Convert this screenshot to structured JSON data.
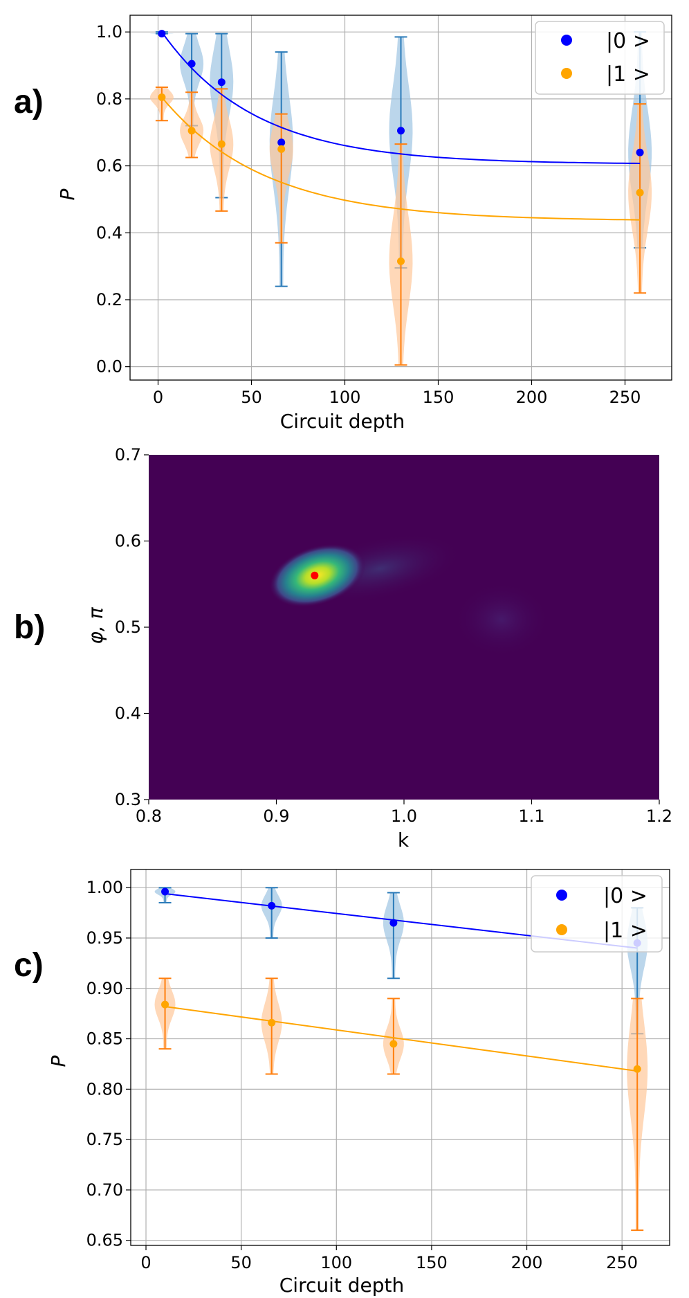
{
  "colors": {
    "state0": "#0000ff",
    "state1": "#ffa500",
    "violin0": "#9ec5e3",
    "violin0_edge": "#2b7bb9",
    "violin1": "#ffc89a",
    "violin1_edge": "#ff7f0e",
    "heat_bg": "#440154",
    "heat_peak": "#ff0000"
  },
  "chart_data": [
    {
      "panel_label": "a)",
      "type": "scatter",
      "xlabel": "Circuit depth",
      "ylabel": "P",
      "xlim": [
        -15,
        275
      ],
      "ylim": [
        -0.04,
        1.05
      ],
      "xticks": [
        0,
        50,
        100,
        150,
        200,
        250
      ],
      "xtick_labels": [
        "0",
        "50",
        "100",
        "150",
        "200",
        "250"
      ],
      "yticks": [
        0.0,
        0.2,
        0.4,
        0.6,
        0.8,
        1.0
      ],
      "ytick_labels": [
        "0.0",
        "0.2",
        "0.4",
        "0.6",
        "0.8",
        "1.0"
      ],
      "grid": true,
      "legend": "top-right",
      "series": [
        {
          "name": "|0 >",
          "x": [
            2,
            18,
            34,
            66,
            130,
            258
          ],
          "mean": [
            0.995,
            0.905,
            0.85,
            0.67,
            0.705,
            0.64
          ],
          "min": [
            0.995,
            0.72,
            0.505,
            0.24,
            0.295,
            0.355
          ],
          "max": [
            1.0,
            0.995,
            0.995,
            0.94,
            0.985,
            1.0
          ],
          "fit_x": [
            2,
            258
          ],
          "fit_curve": {
            "a": 0.605,
            "b": 0.395,
            "tau": 50
          }
        },
        {
          "name": "|1 >",
          "x": [
            2,
            18,
            34,
            66,
            130,
            258
          ],
          "mean": [
            0.805,
            0.705,
            0.665,
            0.65,
            0.315,
            0.52
          ],
          "min": [
            0.735,
            0.625,
            0.465,
            0.37,
            0.005,
            0.22
          ],
          "max": [
            0.835,
            0.82,
            0.83,
            0.755,
            0.665,
            0.785
          ],
          "fit_x": [
            2,
            258
          ],
          "fit_curve": {
            "a": 0.435,
            "b": 0.37,
            "tau": 55
          }
        }
      ]
    },
    {
      "panel_label": "b)",
      "type": "heatmap",
      "xlabel": "k",
      "ylabel": "φ, π",
      "xlim": [
        0.8,
        1.2
      ],
      "ylim": [
        0.3,
        0.7
      ],
      "xticks": [
        0.8,
        0.9,
        1.0,
        1.1,
        1.2
      ],
      "xtick_labels": [
        "0.8",
        "0.9",
        "1.0",
        "1.1",
        "1.2"
      ],
      "yticks": [
        0.3,
        0.4,
        0.5,
        0.6,
        0.7
      ],
      "ytick_labels": [
        "0.3",
        "0.4",
        "0.5",
        "0.6",
        "0.7"
      ],
      "grid": false,
      "peak": {
        "k": 0.93,
        "phi": 0.56
      }
    },
    {
      "panel_label": "c)",
      "type": "scatter",
      "xlabel": "Circuit depth",
      "ylabel": "P",
      "xlim": [
        -8,
        275
      ],
      "ylim": [
        0.645,
        1.018
      ],
      "xticks": [
        0,
        50,
        100,
        150,
        200,
        250
      ],
      "xtick_labels": [
        "0",
        "50",
        "100",
        "150",
        "200",
        "250"
      ],
      "yticks": [
        0.65,
        0.7,
        0.75,
        0.8,
        0.85,
        0.9,
        0.95,
        1.0
      ],
      "ytick_labels": [
        "0.65",
        "0.70",
        "0.75",
        "0.80",
        "0.85",
        "0.90",
        "0.95",
        "1.00"
      ],
      "grid": true,
      "legend": "top-right",
      "series": [
        {
          "name": "|0 >",
          "x": [
            10,
            66,
            130,
            258
          ],
          "mean": [
            0.996,
            0.982,
            0.965,
            0.945
          ],
          "min": [
            0.985,
            0.95,
            0.91,
            0.855
          ],
          "max": [
            1.0,
            1.0,
            0.995,
            0.98
          ],
          "fit_x": [
            10,
            258
          ],
          "fit_line": [
            0.994,
            0.94
          ]
        },
        {
          "name": "|1 >",
          "x": [
            10,
            66,
            130,
            258
          ],
          "mean": [
            0.884,
            0.866,
            0.845,
            0.82
          ],
          "min": [
            0.84,
            0.815,
            0.815,
            0.66
          ],
          "max": [
            0.91,
            0.91,
            0.89,
            0.89
          ],
          "fit_x": [
            10,
            258
          ],
          "fit_line": [
            0.882,
            0.818
          ]
        }
      ]
    }
  ]
}
